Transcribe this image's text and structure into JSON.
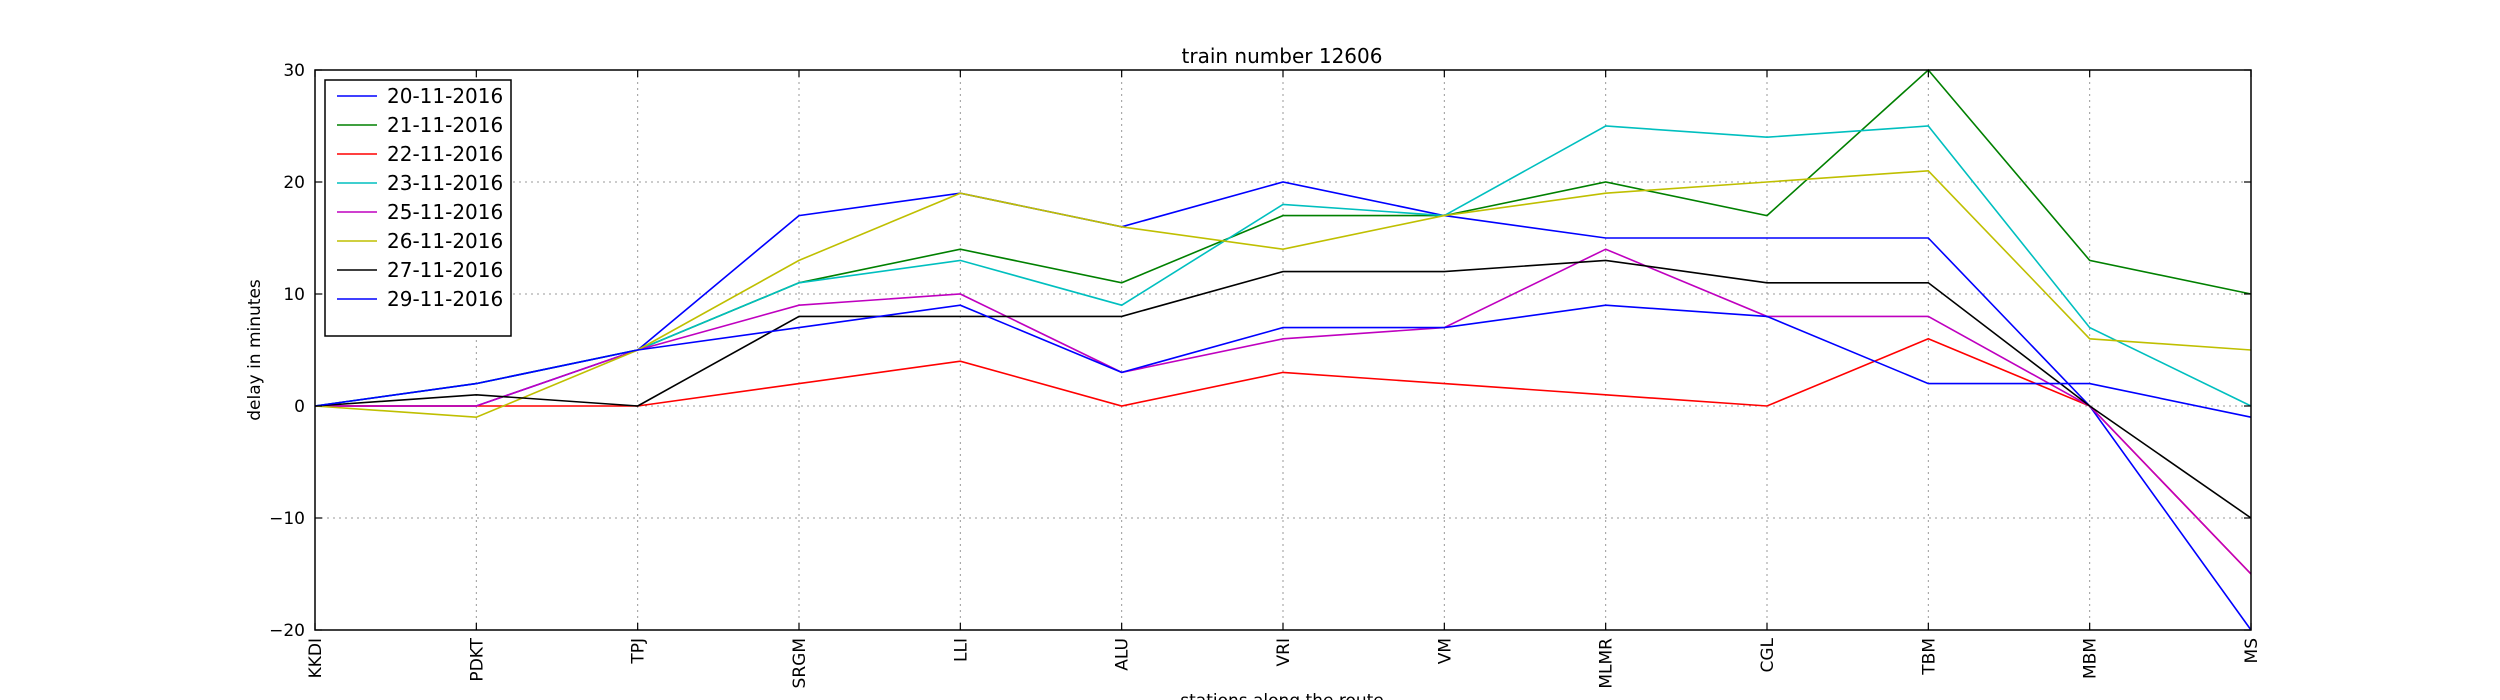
{
  "chart_data": {
    "type": "line",
    "title": "train number 12606",
    "xlabel": "stations along the route",
    "ylabel": "delay in minutes",
    "ylim": [
      -20,
      30
    ],
    "yticks": [
      -20,
      -10,
      0,
      10,
      20,
      30
    ],
    "ytick_labels": [
      "−20",
      "−10",
      "0",
      "10",
      "20",
      "30"
    ],
    "grid": true,
    "legend_position": "top-left",
    "categories": [
      "KKDI",
      "PDKT",
      "TPJ",
      "SRGM",
      "LLI",
      "ALU",
      "VRI",
      "VM",
      "MLMR",
      "CGL",
      "TBM",
      "MBM",
      "MS"
    ],
    "series": [
      {
        "name": "20-11-2016",
        "color": "#0000ff",
        "values": [
          0,
          0,
          5,
          17,
          19,
          16,
          20,
          17,
          15,
          15,
          15,
          0,
          -20
        ]
      },
      {
        "name": "21-11-2016",
        "color": "#008000",
        "values": [
          0,
          2,
          5,
          11,
          14,
          11,
          17,
          17,
          20,
          17,
          30,
          13,
          10
        ]
      },
      {
        "name": "22-11-2016",
        "color": "#ff0000",
        "values": [
          0,
          0,
          0,
          2,
          4,
          0,
          3,
          2,
          1,
          0,
          6,
          0,
          -15
        ]
      },
      {
        "name": "23-11-2016",
        "color": "#00bfbf",
        "values": [
          0,
          2,
          5,
          11,
          13,
          9,
          18,
          17,
          25,
          24,
          25,
          7,
          0
        ]
      },
      {
        "name": "25-11-2016",
        "color": "#bf00bf",
        "values": [
          0,
          0,
          5,
          9,
          10,
          3,
          6,
          7,
          14,
          8,
          8,
          0,
          -15
        ]
      },
      {
        "name": "26-11-2016",
        "color": "#bfbf00",
        "values": [
          0,
          -1,
          5,
          13,
          19,
          16,
          14,
          17,
          19,
          20,
          21,
          6,
          5
        ]
      },
      {
        "name": "27-11-2016",
        "color": "#000000",
        "values": [
          0,
          1,
          0,
          8,
          8,
          8,
          12,
          12,
          13,
          11,
          11,
          0,
          -10
        ]
      },
      {
        "name": "29-11-2016",
        "color": "#0000ff",
        "values": [
          0,
          2,
          5,
          7,
          9,
          3,
          7,
          7,
          9,
          8,
          2,
          2,
          -1
        ]
      }
    ]
  }
}
